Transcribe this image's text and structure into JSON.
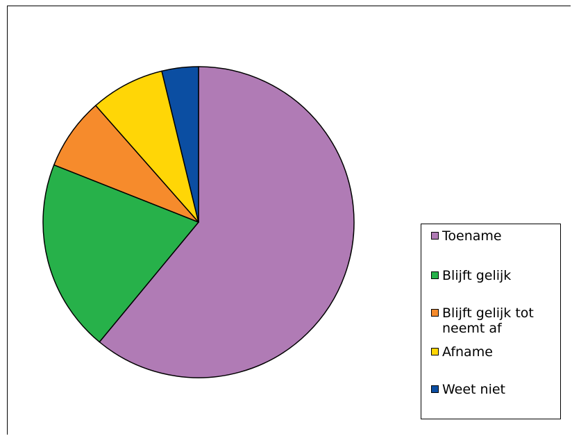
{
  "chart_data": {
    "type": "pie",
    "categories": [
      "Toename",
      "Blijft gelijk",
      "Blijft gelijk tot neemt af",
      "Afname",
      "Weet niet"
    ],
    "values": [
      61,
      20,
      7.5,
      7.7,
      3.8
    ],
    "colors": [
      "#B07BB5",
      "#27B14A",
      "#F68B2C",
      "#FFD606",
      "#0B4EA2"
    ],
    "start_angle_deg": 0,
    "direction": "clockwise",
    "legend_position": "right",
    "legend": [
      "Toename",
      "Blijft gelijk",
      "Blijft gelijk tot neemt af",
      "Afname",
      "Weet niet"
    ]
  }
}
